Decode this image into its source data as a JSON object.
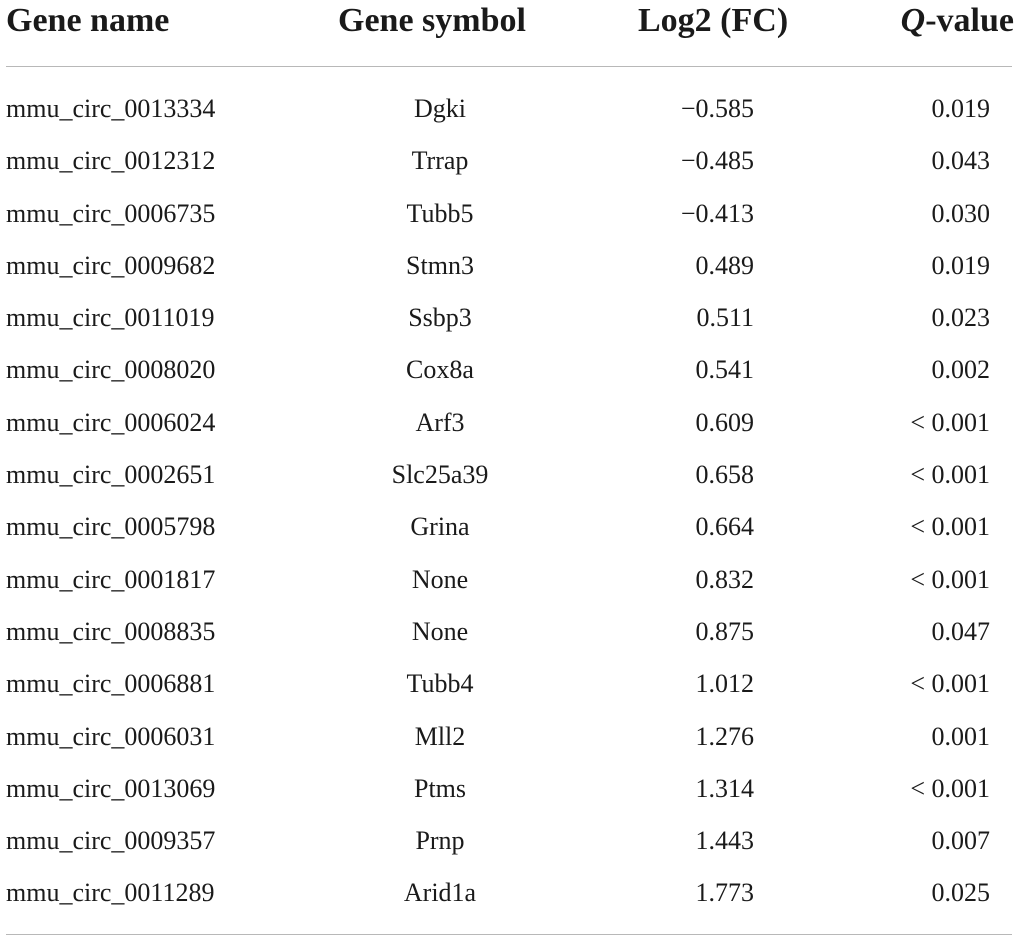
{
  "table": {
    "headers": {
      "gene_name": "Gene name",
      "gene_symbol": "Gene symbol",
      "log2fc": "Log2 (FC)",
      "q_italic": "Q",
      "q_rest": "-value"
    },
    "rows": [
      {
        "name": "mmu_circ_0013334",
        "symbol": "Dgki",
        "log2fc": "−0.585",
        "q": "0.019"
      },
      {
        "name": "mmu_circ_0012312",
        "symbol": "Trrap",
        "log2fc": "−0.485",
        "q": "0.043"
      },
      {
        "name": "mmu_circ_0006735",
        "symbol": "Tubb5",
        "log2fc": "−0.413",
        "q": "0.030"
      },
      {
        "name": "mmu_circ_0009682",
        "symbol": "Stmn3",
        "log2fc": "0.489",
        "q": "0.019"
      },
      {
        "name": "mmu_circ_0011019",
        "symbol": "Ssbp3",
        "log2fc": "0.511",
        "q": "0.023"
      },
      {
        "name": "mmu_circ_0008020",
        "symbol": "Cox8a",
        "log2fc": "0.541",
        "q": "0.002"
      },
      {
        "name": "mmu_circ_0006024",
        "symbol": "Arf3",
        "log2fc": "0.609",
        "q": "< 0.001"
      },
      {
        "name": "mmu_circ_0002651",
        "symbol": "Slc25a39",
        "log2fc": "0.658",
        "q": "< 0.001"
      },
      {
        "name": "mmu_circ_0005798",
        "symbol": "Grina",
        "log2fc": "0.664",
        "q": "< 0.001"
      },
      {
        "name": "mmu_circ_0001817",
        "symbol": "None",
        "log2fc": "0.832",
        "q": "< 0.001"
      },
      {
        "name": "mmu_circ_0008835",
        "symbol": "None",
        "log2fc": "0.875",
        "q": "0.047"
      },
      {
        "name": "mmu_circ_0006881",
        "symbol": "Tubb4",
        "log2fc": "1.012",
        "q": "< 0.001"
      },
      {
        "name": "mmu_circ_0006031",
        "symbol": "Mll2",
        "log2fc": "1.276",
        "q": "0.001"
      },
      {
        "name": "mmu_circ_0013069",
        "symbol": "Ptms",
        "log2fc": "1.314",
        "q": "< 0.001"
      },
      {
        "name": "mmu_circ_0009357",
        "symbol": "Prnp",
        "log2fc": "1.443",
        "q": "0.007"
      },
      {
        "name": "mmu_circ_0011289",
        "symbol": "Arid1a",
        "log2fc": "1.773",
        "q": "0.025"
      }
    ]
  }
}
